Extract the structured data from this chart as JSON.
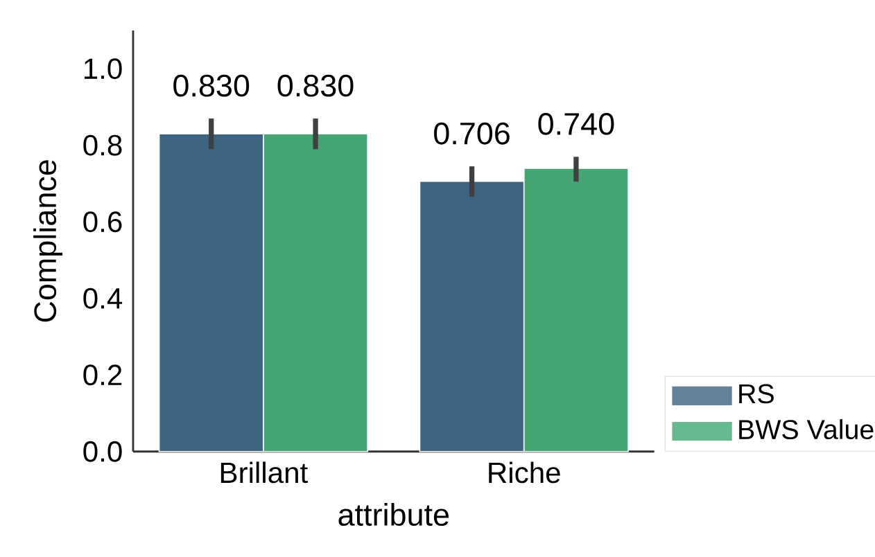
{
  "chart_data": {
    "type": "bar",
    "xlabel": "attribute",
    "ylabel": "Compliance",
    "categories": [
      "Brillant",
      "Riche"
    ],
    "series": [
      {
        "name": "RS",
        "color": "#3d6480",
        "values": [
          0.83,
          0.706
        ],
        "value_labels": [
          "0.830",
          "0.706"
        ],
        "errors": [
          [
            0.79,
            0.87
          ],
          [
            0.665,
            0.745
          ]
        ]
      },
      {
        "name": "BWS Value",
        "color": "#44a773",
        "values": [
          0.83,
          0.74
        ],
        "value_labels": [
          "0.830",
          "0.740"
        ],
        "errors": [
          [
            0.79,
            0.87
          ],
          [
            0.705,
            0.77
          ]
        ]
      }
    ],
    "ylim": [
      0,
      1.1
    ],
    "yticks": [
      {
        "value": 0,
        "label": "0.0"
      },
      {
        "value": 0.2,
        "label": "0.2"
      },
      {
        "value": 0.4,
        "label": "0.4"
      },
      {
        "value": 0.6,
        "label": "0.6"
      },
      {
        "value": 0.8,
        "label": "0.8"
      },
      {
        "value": 1.0,
        "label": "1.0"
      }
    ],
    "legend": "right"
  }
}
